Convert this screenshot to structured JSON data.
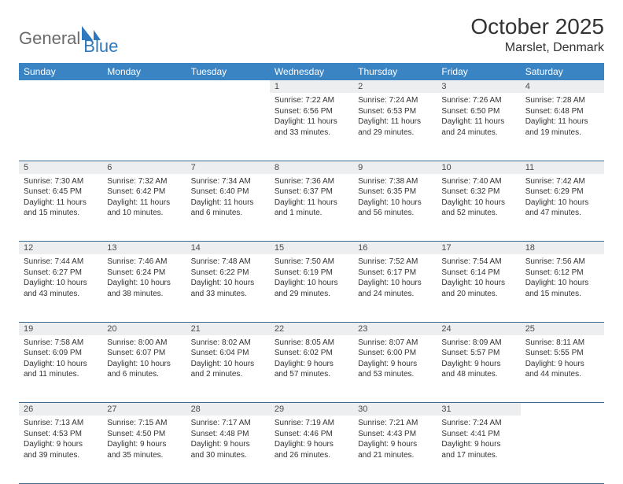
{
  "brand": {
    "part1": "General",
    "part2": "Blue"
  },
  "title": "October 2025",
  "location": "Marslet, Denmark",
  "colors": {
    "header_bg": "#3b84c4",
    "daynum_bg": "#eceeef",
    "rule": "#3b6a93",
    "brand_gray": "#6b6b6b",
    "brand_blue": "#2f78bd"
  },
  "weekdays": [
    "Sunday",
    "Monday",
    "Tuesday",
    "Wednesday",
    "Thursday",
    "Friday",
    "Saturday"
  ],
  "weeks": [
    {
      "nums": [
        "",
        "",
        "",
        "1",
        "2",
        "3",
        "4"
      ],
      "cells": [
        null,
        null,
        null,
        {
          "sunrise": "Sunrise: 7:22 AM",
          "sunset": "Sunset: 6:56 PM",
          "day1": "Daylight: 11 hours",
          "day2": "and 33 minutes."
        },
        {
          "sunrise": "Sunrise: 7:24 AM",
          "sunset": "Sunset: 6:53 PM",
          "day1": "Daylight: 11 hours",
          "day2": "and 29 minutes."
        },
        {
          "sunrise": "Sunrise: 7:26 AM",
          "sunset": "Sunset: 6:50 PM",
          "day1": "Daylight: 11 hours",
          "day2": "and 24 minutes."
        },
        {
          "sunrise": "Sunrise: 7:28 AM",
          "sunset": "Sunset: 6:48 PM",
          "day1": "Daylight: 11 hours",
          "day2": "and 19 minutes."
        }
      ]
    },
    {
      "nums": [
        "5",
        "6",
        "7",
        "8",
        "9",
        "10",
        "11"
      ],
      "cells": [
        {
          "sunrise": "Sunrise: 7:30 AM",
          "sunset": "Sunset: 6:45 PM",
          "day1": "Daylight: 11 hours",
          "day2": "and 15 minutes."
        },
        {
          "sunrise": "Sunrise: 7:32 AM",
          "sunset": "Sunset: 6:42 PM",
          "day1": "Daylight: 11 hours",
          "day2": "and 10 minutes."
        },
        {
          "sunrise": "Sunrise: 7:34 AM",
          "sunset": "Sunset: 6:40 PM",
          "day1": "Daylight: 11 hours",
          "day2": "and 6 minutes."
        },
        {
          "sunrise": "Sunrise: 7:36 AM",
          "sunset": "Sunset: 6:37 PM",
          "day1": "Daylight: 11 hours",
          "day2": "and 1 minute."
        },
        {
          "sunrise": "Sunrise: 7:38 AM",
          "sunset": "Sunset: 6:35 PM",
          "day1": "Daylight: 10 hours",
          "day2": "and 56 minutes."
        },
        {
          "sunrise": "Sunrise: 7:40 AM",
          "sunset": "Sunset: 6:32 PM",
          "day1": "Daylight: 10 hours",
          "day2": "and 52 minutes."
        },
        {
          "sunrise": "Sunrise: 7:42 AM",
          "sunset": "Sunset: 6:29 PM",
          "day1": "Daylight: 10 hours",
          "day2": "and 47 minutes."
        }
      ]
    },
    {
      "nums": [
        "12",
        "13",
        "14",
        "15",
        "16",
        "17",
        "18"
      ],
      "cells": [
        {
          "sunrise": "Sunrise: 7:44 AM",
          "sunset": "Sunset: 6:27 PM",
          "day1": "Daylight: 10 hours",
          "day2": "and 43 minutes."
        },
        {
          "sunrise": "Sunrise: 7:46 AM",
          "sunset": "Sunset: 6:24 PM",
          "day1": "Daylight: 10 hours",
          "day2": "and 38 minutes."
        },
        {
          "sunrise": "Sunrise: 7:48 AM",
          "sunset": "Sunset: 6:22 PM",
          "day1": "Daylight: 10 hours",
          "day2": "and 33 minutes."
        },
        {
          "sunrise": "Sunrise: 7:50 AM",
          "sunset": "Sunset: 6:19 PM",
          "day1": "Daylight: 10 hours",
          "day2": "and 29 minutes."
        },
        {
          "sunrise": "Sunrise: 7:52 AM",
          "sunset": "Sunset: 6:17 PM",
          "day1": "Daylight: 10 hours",
          "day2": "and 24 minutes."
        },
        {
          "sunrise": "Sunrise: 7:54 AM",
          "sunset": "Sunset: 6:14 PM",
          "day1": "Daylight: 10 hours",
          "day2": "and 20 minutes."
        },
        {
          "sunrise": "Sunrise: 7:56 AM",
          "sunset": "Sunset: 6:12 PM",
          "day1": "Daylight: 10 hours",
          "day2": "and 15 minutes."
        }
      ]
    },
    {
      "nums": [
        "19",
        "20",
        "21",
        "22",
        "23",
        "24",
        "25"
      ],
      "cells": [
        {
          "sunrise": "Sunrise: 7:58 AM",
          "sunset": "Sunset: 6:09 PM",
          "day1": "Daylight: 10 hours",
          "day2": "and 11 minutes."
        },
        {
          "sunrise": "Sunrise: 8:00 AM",
          "sunset": "Sunset: 6:07 PM",
          "day1": "Daylight: 10 hours",
          "day2": "and 6 minutes."
        },
        {
          "sunrise": "Sunrise: 8:02 AM",
          "sunset": "Sunset: 6:04 PM",
          "day1": "Daylight: 10 hours",
          "day2": "and 2 minutes."
        },
        {
          "sunrise": "Sunrise: 8:05 AM",
          "sunset": "Sunset: 6:02 PM",
          "day1": "Daylight: 9 hours",
          "day2": "and 57 minutes."
        },
        {
          "sunrise": "Sunrise: 8:07 AM",
          "sunset": "Sunset: 6:00 PM",
          "day1": "Daylight: 9 hours",
          "day2": "and 53 minutes."
        },
        {
          "sunrise": "Sunrise: 8:09 AM",
          "sunset": "Sunset: 5:57 PM",
          "day1": "Daylight: 9 hours",
          "day2": "and 48 minutes."
        },
        {
          "sunrise": "Sunrise: 8:11 AM",
          "sunset": "Sunset: 5:55 PM",
          "day1": "Daylight: 9 hours",
          "day2": "and 44 minutes."
        }
      ]
    },
    {
      "nums": [
        "26",
        "27",
        "28",
        "29",
        "30",
        "31",
        ""
      ],
      "cells": [
        {
          "sunrise": "Sunrise: 7:13 AM",
          "sunset": "Sunset: 4:53 PM",
          "day1": "Daylight: 9 hours",
          "day2": "and 39 minutes."
        },
        {
          "sunrise": "Sunrise: 7:15 AM",
          "sunset": "Sunset: 4:50 PM",
          "day1": "Daylight: 9 hours",
          "day2": "and 35 minutes."
        },
        {
          "sunrise": "Sunrise: 7:17 AM",
          "sunset": "Sunset: 4:48 PM",
          "day1": "Daylight: 9 hours",
          "day2": "and 30 minutes."
        },
        {
          "sunrise": "Sunrise: 7:19 AM",
          "sunset": "Sunset: 4:46 PM",
          "day1": "Daylight: 9 hours",
          "day2": "and 26 minutes."
        },
        {
          "sunrise": "Sunrise: 7:21 AM",
          "sunset": "Sunset: 4:43 PM",
          "day1": "Daylight: 9 hours",
          "day2": "and 21 minutes."
        },
        {
          "sunrise": "Sunrise: 7:24 AM",
          "sunset": "Sunset: 4:41 PM",
          "day1": "Daylight: 9 hours",
          "day2": "and 17 minutes."
        },
        null
      ]
    }
  ]
}
